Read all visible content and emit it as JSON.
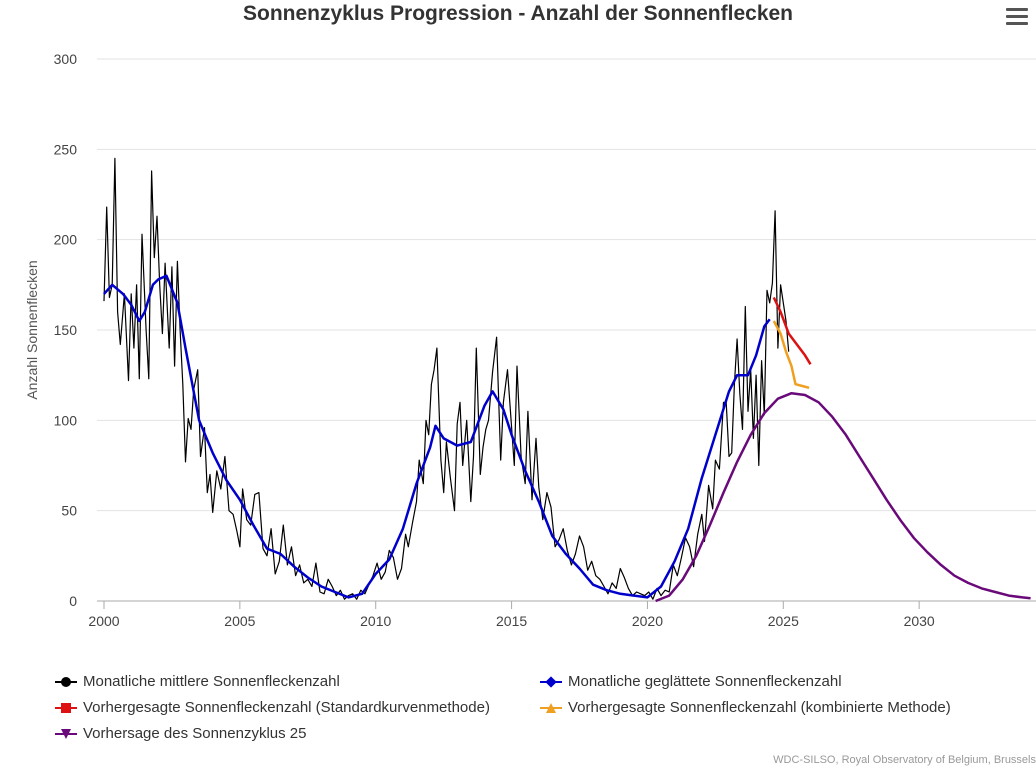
{
  "chart_data": {
    "type": "line",
    "title": "Sonnenzyklus Progression - Anzahl der Sonnenflecken",
    "xlabel": "",
    "ylabel": "Anzahl Sonnenflecken",
    "xlim": [
      2000,
      2034.3
    ],
    "ylim": [
      0,
      300
    ],
    "xticks": [
      2000,
      2005,
      2010,
      2015,
      2020,
      2025,
      2030
    ],
    "yticks": [
      0,
      50,
      100,
      150,
      200,
      250,
      300
    ],
    "grid": true,
    "legend_position": "bottom",
    "credit": "WDC-SILSO, Royal Observatory of Belgium, Brussels",
    "series": [
      {
        "name": "Monatliche mittlere Sonnenfleckenzahl",
        "color": "#000000",
        "symbol": "circle",
        "width": 1.2,
        "x": [
          2000.0,
          2000.1,
          2000.2,
          2000.3,
          2000.4,
          2000.5,
          2000.6,
          2000.75,
          2000.9,
          2001.0,
          2001.1,
          2001.2,
          2001.3,
          2001.4,
          2001.55,
          2001.65,
          2001.75,
          2001.85,
          2001.95,
          2002.05,
          2002.15,
          2002.25,
          2002.4,
          2002.5,
          2002.6,
          2002.7,
          2002.8,
          2002.9,
          2003.0,
          2003.1,
          2003.2,
          2003.3,
          2003.45,
          2003.55,
          2003.7,
          2003.8,
          2003.9,
          2004.0,
          2004.15,
          2004.3,
          2004.45,
          2004.6,
          2004.75,
          2004.9,
          2005.0,
          2005.1,
          2005.25,
          2005.4,
          2005.55,
          2005.7,
          2005.85,
          2006.0,
          2006.15,
          2006.3,
          2006.45,
          2006.6,
          2006.75,
          2006.9,
          2007.05,
          2007.2,
          2007.35,
          2007.5,
          2007.65,
          2007.8,
          2007.95,
          2008.1,
          2008.25,
          2008.4,
          2008.55,
          2008.7,
          2008.85,
          2009.0,
          2009.15,
          2009.3,
          2009.45,
          2009.6,
          2009.75,
          2009.9,
          2010.05,
          2010.2,
          2010.35,
          2010.5,
          2010.65,
          2010.8,
          2010.95,
          2011.1,
          2011.2,
          2011.35,
          2011.5,
          2011.6,
          2011.75,
          2011.85,
          2011.95,
          2012.05,
          2012.15,
          2012.25,
          2012.4,
          2012.5,
          2012.6,
          2012.75,
          2012.9,
          2013.0,
          2013.1,
          2013.2,
          2013.35,
          2013.5,
          2013.6,
          2013.7,
          2013.85,
          2013.95,
          2014.05,
          2014.15,
          2014.3,
          2014.45,
          2014.6,
          2014.7,
          2014.85,
          2015.0,
          2015.1,
          2015.2,
          2015.35,
          2015.5,
          2015.6,
          2015.75,
          2015.9,
          2016.0,
          2016.15,
          2016.3,
          2016.45,
          2016.6,
          2016.75,
          2016.9,
          2017.05,
          2017.2,
          2017.35,
          2017.5,
          2017.65,
          2017.8,
          2017.95,
          2018.1,
          2018.25,
          2018.4,
          2018.55,
          2018.7,
          2018.85,
          2019.0,
          2019.15,
          2019.3,
          2019.45,
          2019.6,
          2019.75,
          2019.9,
          2020.05,
          2020.2,
          2020.35,
          2020.5,
          2020.65,
          2020.8,
          2020.95,
          2021.1,
          2021.25,
          2021.4,
          2021.55,
          2021.7,
          2021.85,
          2022.0,
          2022.1,
          2022.25,
          2022.4,
          2022.5,
          2022.65,
          2022.8,
          2022.9,
          2023.0,
          2023.1,
          2023.2,
          2023.3,
          2023.4,
          2023.5,
          2023.6,
          2023.7,
          2023.8,
          2023.9,
          2024.0,
          2024.1,
          2024.2,
          2024.3,
          2024.4,
          2024.5,
          2024.6,
          2024.7,
          2024.8,
          2024.9,
          2025.0,
          2025.1,
          2025.2
        ],
        "y": [
          166,
          218,
          168,
          175,
          245,
          160,
          142,
          170,
          122,
          170,
          140,
          175,
          123,
          203,
          150,
          123,
          238,
          190,
          213,
          175,
          148,
          187,
          140,
          185,
          130,
          188,
          150,
          120,
          77,
          101,
          95,
          117,
          128,
          80,
          96,
          60,
          70,
          49,
          72,
          62,
          80,
          50,
          48,
          38,
          30,
          62,
          45,
          42,
          59,
          60,
          29,
          25,
          40,
          15,
          22,
          42,
          20,
          30,
          14,
          20,
          10,
          12,
          8,
          21,
          5,
          4,
          12,
          8,
          3,
          6,
          1,
          3,
          4,
          1,
          6,
          4,
          9,
          14,
          21,
          12,
          16,
          28,
          24,
          12,
          18,
          37,
          30,
          43,
          55,
          78,
          65,
          100,
          92,
          120,
          128,
          140,
          78,
          60,
          88,
          68,
          50,
          98,
          110,
          75,
          100,
          55,
          80,
          140,
          70,
          85,
          95,
          100,
          127,
          146,
          78,
          110,
          128,
          96,
          75,
          130,
          80,
          65,
          105,
          56,
          90,
          63,
          45,
          60,
          52,
          30,
          34,
          40,
          28,
          20,
          26,
          36,
          30,
          17,
          22,
          14,
          12,
          8,
          4,
          10,
          7,
          18,
          13,
          7,
          3,
          5,
          4,
          3,
          5,
          1,
          7,
          3,
          6,
          5,
          20,
          14,
          24,
          35,
          30,
          19,
          37,
          48,
          33,
          64,
          51,
          78,
          73,
          110,
          110,
          80,
          82,
          120,
          145,
          115,
          95,
          163,
          105,
          128,
          90,
          125,
          75,
          133,
          103,
          172,
          165,
          176,
          216,
          140,
          175,
          165,
          155,
          138
        ]
      },
      {
        "name": "Monatliche geglättete Sonnenfleckenzahl",
        "color": "#0000cc",
        "symbol": "diamond",
        "width": 2.5,
        "x": [
          2000.0,
          2000.3,
          2000.7,
          2001.0,
          2001.3,
          2001.5,
          2001.8,
          2002.0,
          2002.3,
          2002.7,
          2003.0,
          2003.5,
          2004.0,
          2004.5,
          2005.0,
          2005.5,
          2006.0,
          2006.5,
          2007.0,
          2007.5,
          2008.0,
          2008.5,
          2009.0,
          2009.5,
          2010.0,
          2010.5,
          2011.0,
          2011.5,
          2012.0,
          2012.2,
          2012.5,
          2013.0,
          2013.5,
          2014.0,
          2014.3,
          2014.7,
          2015.0,
          2015.5,
          2016.0,
          2016.5,
          2017.0,
          2017.5,
          2018.0,
          2018.5,
          2019.0,
          2019.5,
          2020.0,
          2020.5,
          2021.0,
          2021.5,
          2022.0,
          2022.5,
          2023.0,
          2023.3,
          2023.7,
          2024.0,
          2024.3,
          2024.5
        ],
        "y": [
          170,
          175,
          170,
          164,
          155,
          160,
          175,
          178,
          180,
          165,
          140,
          100,
          82,
          67,
          56,
          42,
          29,
          26,
          19,
          13,
          8,
          5,
          2,
          4,
          15,
          23,
          40,
          65,
          85,
          97,
          90,
          86,
          88,
          108,
          116,
          106,
          92,
          72,
          55,
          36,
          26,
          18,
          9,
          6,
          4,
          3,
          2,
          8,
          22,
          40,
          68,
          92,
          116,
          125,
          125,
          136,
          152,
          156
        ]
      },
      {
        "name": "Vorhergesagte Sonnenfleckenzahl (Standardkurvenmethode)",
        "color": "#dd1111",
        "symbol": "square",
        "width": 2.5,
        "x": [
          2024.65,
          2024.9,
          2025.2,
          2025.5,
          2025.8,
          2026.0
        ],
        "y": [
          168,
          160,
          148,
          142,
          136,
          131
        ]
      },
      {
        "name": "Vorhergesagte Sonnenfleckenzahl (kombinierte Methode)",
        "color": "#f0a020",
        "symbol": "triangle",
        "width": 2.5,
        "x": [
          2024.65,
          2024.9,
          2025.1,
          2025.3,
          2025.45,
          2025.7,
          2025.95
        ],
        "y": [
          155,
          148,
          138,
          130,
          120,
          119,
          118
        ]
      },
      {
        "name": "Vorhersage des Sonnenzyklus 25",
        "color": "#6a0a7a",
        "symbol": "triangle-down",
        "width": 2.5,
        "x": [
          2020.3,
          2020.8,
          2021.3,
          2021.8,
          2022.3,
          2022.8,
          2023.3,
          2023.8,
          2024.3,
          2024.8,
          2025.3,
          2025.8,
          2026.3,
          2026.8,
          2027.3,
          2027.8,
          2028.3,
          2028.8,
          2029.3,
          2029.8,
          2030.3,
          2030.8,
          2031.3,
          2031.8,
          2032.3,
          2032.8,
          2033.3,
          2033.8,
          2034.1
        ],
        "y": [
          0,
          3,
          12,
          25,
          42,
          60,
          77,
          92,
          104,
          112,
          115,
          114,
          110,
          102,
          92,
          80,
          68,
          56,
          45,
          35,
          27,
          20,
          14,
          10,
          7,
          5,
          3,
          2,
          1.5
        ]
      }
    ]
  },
  "menu_icon": "hamburger-menu-icon"
}
